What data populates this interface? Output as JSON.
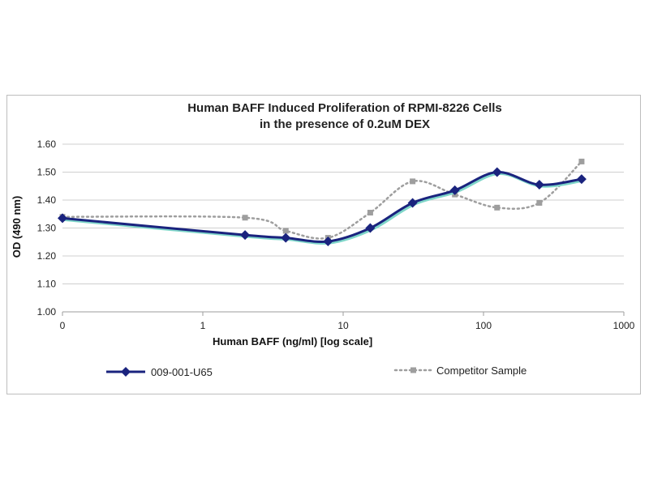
{
  "chart_data": {
    "type": "line",
    "title_lines": [
      "Human BAFF Induced Proliferation of RPMI-8226 Cells",
      "in the presence of 0.2uM DEX"
    ],
    "xlabel": "Human BAFF (ng/ml) [log scale]",
    "ylabel": "OD (490 nm)",
    "x_scale": "log",
    "x_tick_labels": [
      "0",
      "1",
      "10",
      "100",
      "1000"
    ],
    "x_ticks": [
      0.1,
      1,
      10,
      100,
      1000
    ],
    "xlim": [
      0.1,
      1000
    ],
    "ylim": [
      1.0,
      1.6
    ],
    "y_ticks": [
      1.0,
      1.1,
      1.2,
      1.3,
      1.4,
      1.5,
      1.6
    ],
    "y_tick_labels": [
      "1.00",
      "1.10",
      "1.20",
      "1.30",
      "1.40",
      "1.50",
      "1.60"
    ],
    "grid": "horizontal",
    "legend_position": "bottom",
    "series": [
      {
        "name": "009-001-U65",
        "color": "#1a237e",
        "shadow_color": "#7fd6c9",
        "style": "solid",
        "marker": "diamond",
        "x": [
          0.1,
          2,
          3.9,
          7.8,
          15.6,
          31.25,
          62.5,
          125,
          250,
          500
        ],
        "y": [
          1.335,
          1.275,
          1.265,
          1.252,
          1.3,
          1.39,
          1.435,
          1.5,
          1.455,
          1.475
        ]
      },
      {
        "name": "Competitor Sample",
        "color": "#9e9e9e",
        "style": "dotted",
        "marker": "square",
        "x": [
          0.1,
          2,
          3.9,
          7.8,
          15.6,
          31.25,
          62.5,
          125,
          250,
          500
        ],
        "y": [
          1.34,
          1.337,
          1.29,
          1.265,
          1.355,
          1.467,
          1.42,
          1.373,
          1.39,
          1.538
        ]
      }
    ]
  }
}
